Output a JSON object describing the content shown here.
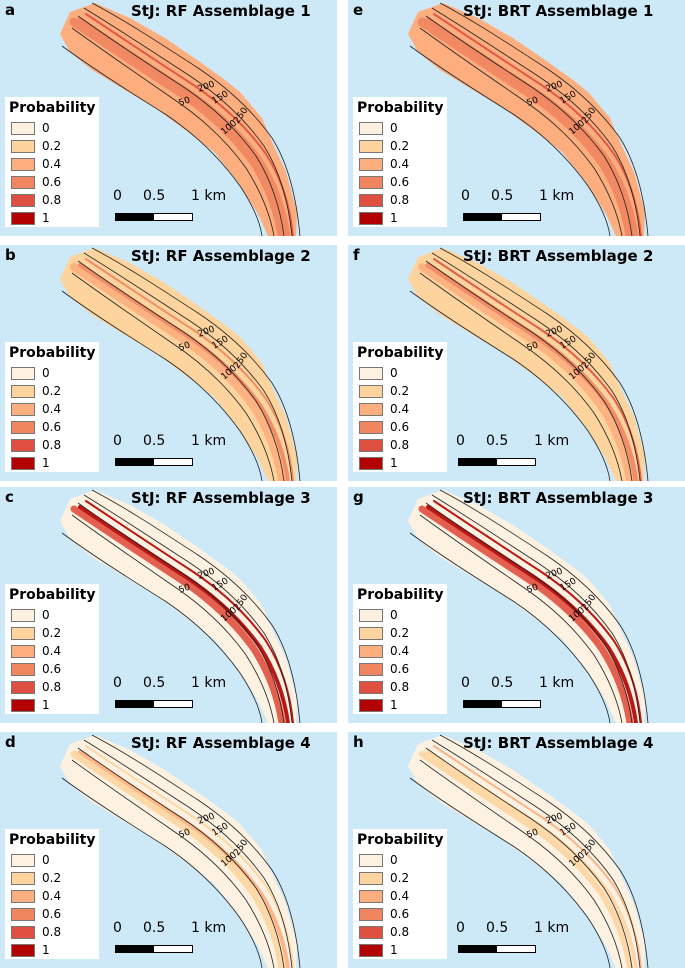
{
  "colors": {
    "ocean": "#cde9f8",
    "legend": [
      "#fdf1e1",
      "#fdd49e",
      "#fdae7e",
      "#f08660",
      "#e05040",
      "#b30000"
    ]
  },
  "legend": {
    "title": "Probability",
    "labels": [
      "0",
      "0.2",
      "0.4",
      "0.6",
      "0.8",
      "1"
    ]
  },
  "scale": {
    "labels": [
      "0",
      "0.5",
      "1 km"
    ]
  },
  "contours": {
    "labels": [
      "200",
      "150",
      "250",
      "50",
      "100"
    ]
  },
  "panels": [
    {
      "letter": "a",
      "title": "StJ: RF Assemblage 1"
    },
    {
      "letter": "e",
      "title": "StJ: BRT Assemblage 1"
    },
    {
      "letter": "b",
      "title": "StJ: RF Assemblage 2"
    },
    {
      "letter": "f",
      "title": "StJ: BRT Assemblage 2"
    },
    {
      "letter": "c",
      "title": "StJ: RF Assemblage 3"
    },
    {
      "letter": "g",
      "title": "StJ: BRT Assemblage 3"
    },
    {
      "letter": "d",
      "title": "StJ: RF Assemblage 4"
    },
    {
      "letter": "h",
      "title": "StJ: BRT Assemblage 4"
    }
  ]
}
